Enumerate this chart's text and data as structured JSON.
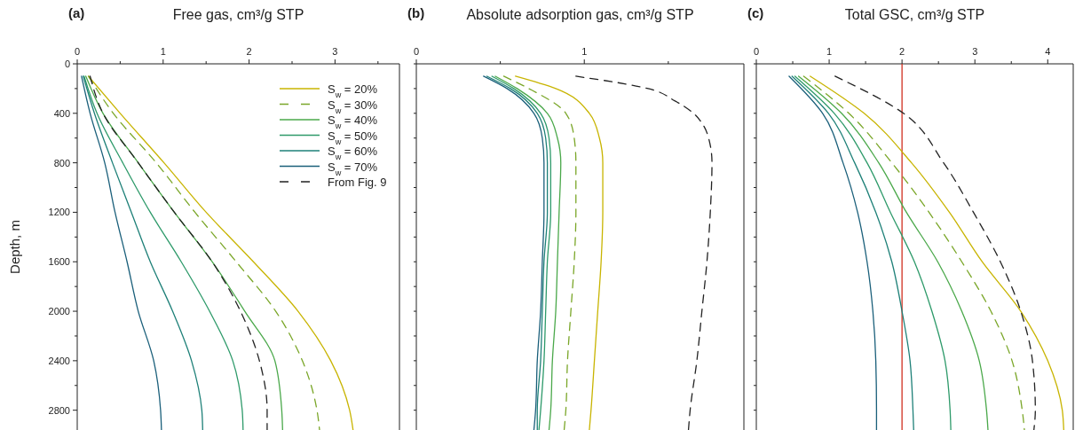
{
  "chart_data": [
    {
      "type": "line",
      "title": "(a)",
      "xlabel": "Free gas, cm³/g STP",
      "ylabel": "Depth, m",
      "legend": "top right",
      "xlim": [
        0,
        3.75
      ],
      "xticks": [
        0,
        {
          "value": 0.5,
          "label": null
        },
        1,
        {
          "value": 1.5,
          "label": null
        },
        2,
        {
          "value": 2.5,
          "label": null
        },
        3,
        {
          "value": 3.5,
          "label": null
        }
      ],
      "ylim": [
        2960,
        0
      ],
      "yticks": [
        0,
        {
          "value": 200,
          "label": null
        },
        400,
        {
          "value": 600,
          "label": null
        },
        800,
        {
          "value": 1000,
          "label": null
        },
        1200,
        {
          "value": 1400,
          "label": null
        },
        1600,
        {
          "value": 1800,
          "label": null
        },
        2000,
        {
          "value": 2200,
          "label": null
        },
        2400,
        {
          "value": 2600,
          "label": null
        },
        2800
      ],
      "series": [
        {
          "name": "S$_{w}$ = 20%",
          "color": "#c8b400",
          "line_style": "solid",
          "x": [
            0.13,
            0.5,
            1.01,
            1.5,
            2.05,
            2.57,
            2.95,
            3.17,
            3.21
          ],
          "values": [
            100,
            400,
            800,
            1200,
            1600,
            2000,
            2400,
            2800,
            2960
          ]
        },
        {
          "name": "S$_{w}$ = 30%",
          "color": "#7aa628",
          "line_style": "dashed",
          "x": [
            0.13,
            0.42,
            0.92,
            1.37,
            1.85,
            2.31,
            2.62,
            2.79,
            2.82
          ],
          "values": [
            100,
            400,
            800,
            1200,
            1600,
            2000,
            2400,
            2800,
            2960
          ]
        },
        {
          "name": "S$_{w}$ = 40%",
          "color": "#4aa84a",
          "line_style": "solid",
          "x": [
            0.1,
            0.3,
            0.71,
            1.13,
            1.57,
            1.95,
            2.3,
            2.38,
            2.39
          ],
          "values": [
            100,
            400,
            800,
            1200,
            1600,
            2000,
            2400,
            2800,
            2960
          ]
        },
        {
          "name": "S$_{w}$ = 50%",
          "color": "#2e9a6a",
          "line_style": "solid",
          "x": [
            0.08,
            0.23,
            0.53,
            0.85,
            1.21,
            1.54,
            1.81,
            1.92,
            1.93
          ],
          "values": [
            100,
            400,
            800,
            1200,
            1600,
            2000,
            2400,
            2800,
            2960
          ]
        },
        {
          "name": "S$_{w}$ = 60%",
          "color": "#1e8078",
          "line_style": "solid",
          "x": [
            0.07,
            0.2,
            0.41,
            0.63,
            0.85,
            1.11,
            1.33,
            1.45,
            1.46
          ],
          "values": [
            100,
            400,
            800,
            1200,
            1600,
            2000,
            2400,
            2800,
            2960
          ]
        },
        {
          "name": "S$_{w}$ = 70%",
          "color": "#1a5f7a",
          "line_style": "solid",
          "x": [
            0.05,
            0.15,
            0.32,
            0.44,
            0.58,
            0.71,
            0.89,
            0.97,
            0.98
          ],
          "values": [
            100,
            400,
            800,
            1200,
            1600,
            2000,
            2400,
            2800,
            2960
          ]
        },
        {
          "name": "From Fig. 9",
          "color": "#222222",
          "line_style": "dashed",
          "x": [
            0.15,
            0.3,
            0.71,
            1.13,
            1.57,
            1.9,
            2.12,
            2.21,
            2.21
          ],
          "values": [
            100,
            400,
            800,
            1200,
            1600,
            2000,
            2400,
            2800,
            2960
          ]
        }
      ]
    },
    {
      "type": "line",
      "title": "(b)",
      "xlabel": "Absolute adsorption gas, cm³/g STP",
      "tick_labels": "x",
      "xlim": [
        0,
        1.95
      ],
      "xticks": [
        0,
        {
          "value": 0.5,
          "label": null
        },
        1,
        {
          "value": 1.5,
          "label": null
        }
      ],
      "ylim": [
        2960,
        0
      ],
      "yticks": [
        {
          "value": 0,
          "label": null
        },
        {
          "value": 200,
          "label": null
        },
        {
          "value": 400,
          "label": null
        },
        {
          "value": 600,
          "label": null
        },
        {
          "value": 800,
          "label": null
        },
        {
          "value": 1000,
          "label": null
        },
        {
          "value": 1200,
          "label": null
        },
        {
          "value": 1400,
          "label": null
        },
        {
          "value": 1600,
          "label": null
        },
        {
          "value": 1800,
          "label": null
        },
        {
          "value": 2000,
          "label": null
        },
        {
          "value": 2200,
          "label": null
        },
        {
          "value": 2400,
          "label": null
        },
        {
          "value": 2600,
          "label": null
        },
        {
          "value": 2800,
          "label": null
        }
      ],
      "series": [
        {
          "color": "#c8b400",
          "line_style": "solid",
          "x": [
            0.59,
            0.83,
            1.03,
            1.09,
            1.11,
            1.11,
            1.1,
            1.08,
            1.06,
            1.04,
            1.03
          ],
          "values": [
            100,
            200,
            400,
            600,
            800,
            1200,
            1600,
            2000,
            2400,
            2800,
            2960
          ]
        },
        {
          "color": "#7aa628",
          "line_style": "dashed",
          "x": [
            0.52,
            0.67,
            0.89,
            0.94,
            0.95,
            0.95,
            0.94,
            0.92,
            0.9,
            0.89,
            0.88
          ],
          "values": [
            100,
            200,
            400,
            600,
            800,
            1200,
            1600,
            2000,
            2400,
            2800,
            2960
          ]
        },
        {
          "color": "#4aa84a",
          "line_style": "solid",
          "x": [
            0.47,
            0.6,
            0.78,
            0.84,
            0.86,
            0.85,
            0.84,
            0.83,
            0.81,
            0.8,
            0.79
          ],
          "values": [
            100,
            200,
            400,
            600,
            800,
            1200,
            1600,
            2000,
            2400,
            2800,
            2960
          ]
        },
        {
          "color": "#2e9a6a",
          "line_style": "solid",
          "x": [
            0.45,
            0.58,
            0.74,
            0.79,
            0.8,
            0.8,
            0.78,
            0.77,
            0.76,
            0.74,
            0.73
          ],
          "values": [
            100,
            200,
            400,
            600,
            800,
            1200,
            1600,
            2000,
            2400,
            2800,
            2960
          ]
        },
        {
          "color": "#1e8078",
          "line_style": "solid",
          "x": [
            0.42,
            0.56,
            0.72,
            0.77,
            0.78,
            0.78,
            0.76,
            0.75,
            0.74,
            0.72,
            0.72
          ],
          "values": [
            100,
            200,
            400,
            600,
            800,
            1200,
            1600,
            2000,
            2400,
            2800,
            2960
          ]
        },
        {
          "color": "#1a5f7a",
          "line_style": "solid",
          "x": [
            0.4,
            0.54,
            0.7,
            0.75,
            0.76,
            0.76,
            0.75,
            0.74,
            0.72,
            0.71,
            0.7
          ],
          "values": [
            100,
            200,
            400,
            600,
            800,
            1200,
            1600,
            2000,
            2400,
            2800,
            2960
          ]
        },
        {
          "color": "#222222",
          "line_style": "dashed",
          "x": [
            0.95,
            1.38,
            1.54,
            1.65,
            1.71,
            1.74,
            1.76,
            1.75,
            1.73,
            1.7,
            1.67,
            1.63,
            1.62
          ],
          "values": [
            100,
            200,
            300,
            400,
            500,
            600,
            800,
            1200,
            1600,
            2000,
            2400,
            2800,
            2960
          ]
        }
      ]
    },
    {
      "type": "line",
      "title": "(c)",
      "xlabel": "Total GSC, cm³/g STP",
      "tick_labels": "x",
      "xlim": [
        0,
        4.35
      ],
      "xticks": [
        0,
        {
          "value": 0.5,
          "label": null
        },
        1,
        {
          "value": 1.5,
          "label": null
        },
        2,
        {
          "value": 2.5,
          "label": null
        },
        3,
        {
          "value": 3.5,
          "label": null
        },
        4
      ],
      "ylim": [
        2960,
        0
      ],
      "yticks": [
        {
          "value": 0,
          "label": null
        },
        {
          "value": 200,
          "label": null
        },
        {
          "value": 400,
          "label": null
        },
        {
          "value": 600,
          "label": null
        },
        {
          "value": 800,
          "label": null
        },
        {
          "value": 1000,
          "label": null
        },
        {
          "value": 1200,
          "label": null
        },
        {
          "value": 1400,
          "label": null
        },
        {
          "value": 1600,
          "label": null
        },
        {
          "value": 1800,
          "label": null
        },
        {
          "value": 2000,
          "label": null
        },
        {
          "value": 2200,
          "label": null
        },
        {
          "value": 2400,
          "label": null
        },
        {
          "value": 2600,
          "label": null
        },
        {
          "value": 2800,
          "label": null
        }
      ],
      "ref_lines": [
        {
          "axis": "x",
          "value": 2,
          "color": "#d03020"
        }
      ],
      "series": [
        {
          "color": "#c8b400",
          "line_style": "solid",
          "x": [
            0.74,
            1.48,
            2.13,
            2.65,
            3.1,
            3.63,
            4.0,
            4.2,
            4.22
          ],
          "values": [
            100,
            400,
            800,
            1200,
            1600,
            2000,
            2400,
            2800,
            2960
          ]
        },
        {
          "color": "#7aa628",
          "line_style": "dashed",
          "x": [
            0.65,
            1.27,
            1.86,
            2.37,
            2.82,
            3.22,
            3.51,
            3.65,
            3.68
          ],
          "values": [
            100,
            400,
            800,
            1200,
            1600,
            2000,
            2400,
            2800,
            2960
          ]
        },
        {
          "color": "#4aa84a",
          "line_style": "solid",
          "x": [
            0.58,
            1.17,
            1.68,
            2.06,
            2.49,
            2.82,
            3.06,
            3.16,
            3.18
          ],
          "values": [
            100,
            400,
            800,
            1200,
            1600,
            2000,
            2400,
            2800,
            2960
          ]
        },
        {
          "color": "#2e9a6a",
          "line_style": "solid",
          "x": [
            0.53,
            1.07,
            1.52,
            1.84,
            2.17,
            2.41,
            2.59,
            2.66,
            2.67
          ],
          "values": [
            100,
            400,
            800,
            1200,
            1600,
            2000,
            2400,
            2800,
            2960
          ]
        },
        {
          "color": "#1e8078",
          "line_style": "solid",
          "x": [
            0.49,
            0.99,
            1.35,
            1.64,
            1.86,
            2.0,
            2.11,
            2.15,
            2.16
          ],
          "values": [
            100,
            400,
            800,
            1200,
            1600,
            2000,
            2400,
            2800,
            2960
          ]
        },
        {
          "color": "#1a5f7a",
          "line_style": "solid",
          "x": [
            0.45,
            0.91,
            1.19,
            1.39,
            1.52,
            1.6,
            1.64,
            1.65,
            1.65
          ],
          "values": [
            100,
            400,
            800,
            1200,
            1600,
            2000,
            2400,
            2800,
            2960
          ]
        },
        {
          "color": "#222222",
          "line_style": "dashed",
          "x": [
            1.08,
            2.02,
            2.57,
            2.98,
            3.35,
            3.63,
            3.79,
            3.83,
            3.81
          ],
          "values": [
            100,
            400,
            800,
            1200,
            1600,
            2000,
            2400,
            2800,
            2960
          ]
        }
      ]
    }
  ]
}
